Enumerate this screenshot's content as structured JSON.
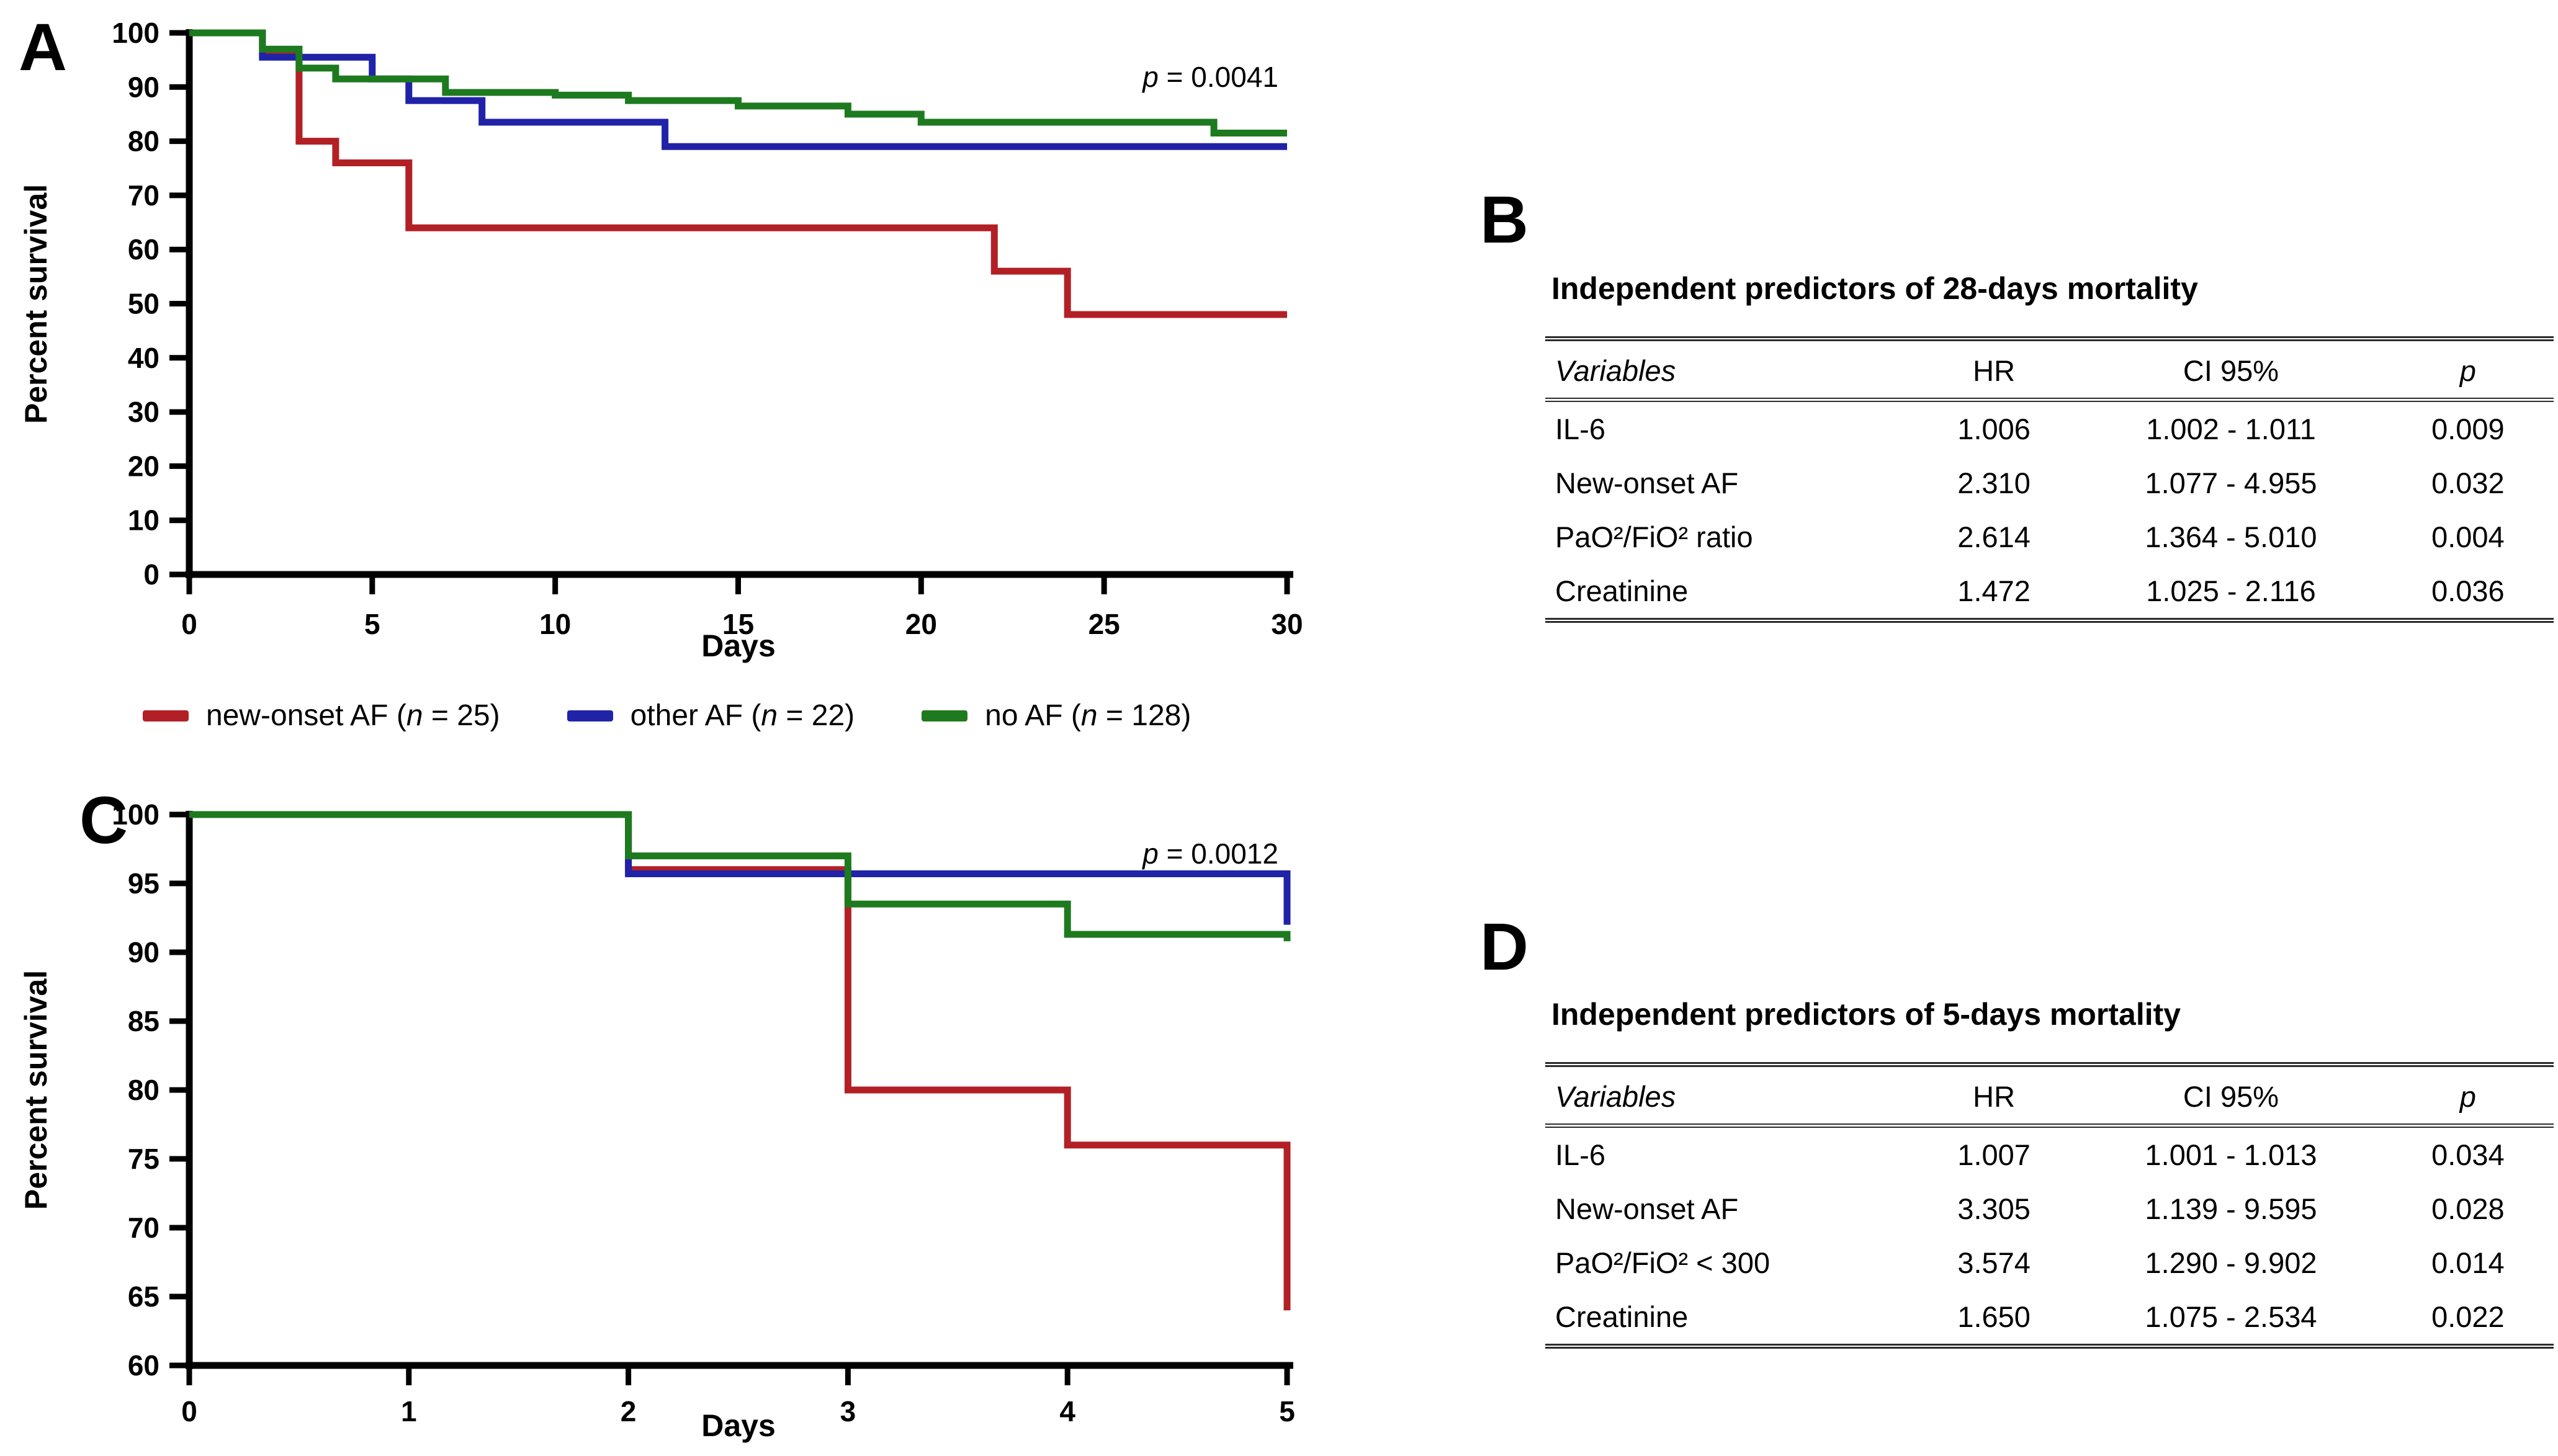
{
  "figure": {
    "panel_a_label": "A",
    "panel_b_label": "B",
    "panel_c_label": "C",
    "panel_d_label": "D"
  },
  "colors": {
    "new_onset_af": "#B22025",
    "other_af": "#2023A8",
    "no_af": "#1E7A1E",
    "axis": "#000000"
  },
  "legend": {
    "items": [
      {
        "id": "new-onset-af",
        "color": "#B22025",
        "label_pre": "new-onset AF (",
        "n_char": "n",
        "label_post": " = 25)"
      },
      {
        "id": "other-af",
        "color": "#2023A8",
        "label_pre": "other AF (",
        "n_char": "n",
        "label_post": " = 22)"
      },
      {
        "id": "no-af",
        "color": "#1E7A1E",
        "label_pre": "no AF (",
        "n_char": "n",
        "label_post": " = 128)"
      }
    ]
  },
  "chart_data": [
    {
      "id": "panel-a",
      "type": "line",
      "subtype": "kaplan-meier-step",
      "title": "",
      "xlabel": "Days",
      "ylabel": "Percent survival",
      "xlim": [
        0,
        30
      ],
      "ylim": [
        0,
        100
      ],
      "xticks": [
        0,
        5,
        10,
        15,
        20,
        25,
        30
      ],
      "yticks": [
        0,
        10,
        20,
        30,
        40,
        50,
        60,
        70,
        80,
        90,
        100
      ],
      "grid": false,
      "legend_position": "below",
      "p_annotation": {
        "symbol": "p",
        "text": " = 0.0041"
      },
      "series": [
        {
          "name": "new-onset AF (n = 25)",
          "color": "#B22025",
          "step_points": [
            [
              0,
              100
            ],
            [
              2,
              96
            ],
            [
              3,
              80
            ],
            [
              4,
              76
            ],
            [
              6,
              64
            ],
            [
              22,
              56
            ],
            [
              24,
              48
            ],
            [
              30,
              48
            ]
          ]
        },
        {
          "name": "other AF (n = 22)",
          "color": "#2023A8",
          "step_points": [
            [
              0,
              100
            ],
            [
              2,
              95.5
            ],
            [
              5,
              91.5
            ],
            [
              6,
              87.5
            ],
            [
              8,
              83.5
            ],
            [
              13,
              79
            ],
            [
              30,
              79
            ]
          ]
        },
        {
          "name": "no AF (n = 128)",
          "color": "#1E7A1E",
          "step_points": [
            [
              0,
              100
            ],
            [
              2,
              97
            ],
            [
              3,
              93.5
            ],
            [
              4,
              91.5
            ],
            [
              7,
              89
            ],
            [
              10,
              88.5
            ],
            [
              12,
              87.5
            ],
            [
              15,
              86.5
            ],
            [
              18,
              85
            ],
            [
              20,
              83.5
            ],
            [
              28,
              81.5
            ],
            [
              30,
              81.5
            ]
          ]
        }
      ]
    },
    {
      "id": "panel-c",
      "type": "line",
      "subtype": "kaplan-meier-step",
      "title": "",
      "xlabel": "Days",
      "ylabel": "Percent survival",
      "xlim": [
        0,
        5
      ],
      "ylim": [
        60,
        100
      ],
      "xticks": [
        0,
        1,
        2,
        3,
        4,
        5
      ],
      "yticks": [
        60,
        65,
        70,
        75,
        80,
        85,
        90,
        95,
        100
      ],
      "grid": false,
      "p_annotation": {
        "symbol": "p",
        "text": " = 0.0012"
      },
      "series": [
        {
          "name": "new-onset AF (n = 25)",
          "color": "#B22025",
          "step_points": [
            [
              0,
              100
            ],
            [
              2,
              96
            ],
            [
              3,
              80
            ],
            [
              4,
              76
            ],
            [
              5,
              76
            ],
            [
              5,
              64
            ]
          ]
        },
        {
          "name": "other AF (n = 22)",
          "color": "#2023A8",
          "step_points": [
            [
              0,
              100
            ],
            [
              2,
              95.7
            ],
            [
              5,
              95.7
            ],
            [
              5,
              92
            ]
          ]
        },
        {
          "name": "no AF (n = 128)",
          "color": "#1E7A1E",
          "step_points": [
            [
              0,
              100
            ],
            [
              2,
              97
            ],
            [
              3,
              93.5
            ],
            [
              4,
              91.3
            ],
            [
              5,
              91.3
            ],
            [
              5,
              90.8
            ]
          ]
        }
      ]
    }
  ],
  "tables": [
    {
      "id": "table-b",
      "panel": "B",
      "title": "Independent predictors of 28-days mortality",
      "columns": [
        "Variables",
        "HR",
        "CI 95%",
        "p"
      ],
      "rows": [
        [
          "IL-6",
          "1.006",
          "1.002 - 1.011",
          "0.009"
        ],
        [
          "New-onset AF",
          "2.310",
          "1.077 - 4.955",
          "0.032"
        ],
        [
          "PaO²/FiO² ratio",
          "2.614",
          "1.364 - 5.010",
          "0.004"
        ],
        [
          "Creatinine",
          "1.472",
          "1.025 - 2.116",
          "0.036"
        ]
      ]
    },
    {
      "id": "table-d",
      "panel": "D",
      "title": "Independent predictors of 5-days mortality",
      "columns": [
        "Variables",
        "HR",
        "CI 95%",
        "p"
      ],
      "rows": [
        [
          "IL-6",
          "1.007",
          "1.001 - 1.013",
          "0.034"
        ],
        [
          "New-onset AF",
          "3.305",
          "1.139 - 9.595",
          "0.028"
        ],
        [
          "PaO²/FiO² < 300",
          "3.574",
          "1.290 - 9.902",
          "0.014"
        ],
        [
          "Creatinine",
          "1.650",
          "1.075 - 2.534",
          "0.022"
        ]
      ]
    }
  ]
}
